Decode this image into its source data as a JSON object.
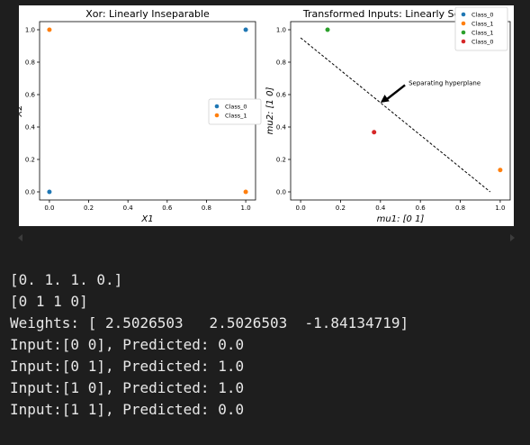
{
  "colors": {
    "background": "#1e1e1e",
    "output_text": "#e8e8e8",
    "class_0": "#1f77b4",
    "class_1": "#ff7f0e",
    "class_1_alt": "#2ca02c",
    "class_0_alt": "#d62728"
  },
  "chart_data": [
    {
      "type": "scatter",
      "title": "Xor: Linearly Inseparable",
      "xlabel": "X1",
      "ylabel": "X2",
      "xlim": [
        -0.05,
        1.05
      ],
      "ylim": [
        -0.05,
        1.05
      ],
      "xticks": [
        "0.0",
        "0.2",
        "0.4",
        "0.6",
        "0.8",
        "1.0"
      ],
      "yticks": [
        "0.0",
        "0.2",
        "0.4",
        "0.6",
        "0.8",
        "1.0"
      ],
      "legend_position": "center-right",
      "series": [
        {
          "name": "Class_0",
          "color": "#1f77b4",
          "points": [
            [
              0,
              0
            ],
            [
              1,
              1
            ]
          ]
        },
        {
          "name": "Class_1",
          "color": "#ff7f0e",
          "points": [
            [
              0,
              1
            ],
            [
              1,
              0
            ]
          ]
        }
      ]
    },
    {
      "type": "scatter",
      "title": "Transformed Inputs: Linearly Separable",
      "xlabel": "mu1: [0 1]",
      "ylabel": "mu2: [1 0]",
      "xlim": [
        -0.05,
        1.05
      ],
      "ylim": [
        -0.05,
        1.05
      ],
      "xticks": [
        "0.0",
        "0.2",
        "0.4",
        "0.6",
        "0.8",
        "1.0"
      ],
      "yticks": [
        "0.0",
        "0.2",
        "0.4",
        "0.6",
        "0.8",
        "1.0"
      ],
      "legend_position": "top-right",
      "series": [
        {
          "name": "Class_0",
          "color": "#1f77b4",
          "points": []
        },
        {
          "name": "Class_1",
          "color": "#ff7f0e",
          "points": [
            [
              1.0,
              0.135
            ]
          ]
        },
        {
          "name": "Class_1",
          "color": "#2ca02c",
          "points": [
            [
              0.135,
              1.0
            ]
          ]
        },
        {
          "name": "Class_0",
          "color": "#d62728",
          "points": [
            [
              0.368,
              0.368
            ]
          ]
        }
      ],
      "line": {
        "style": "dashed",
        "color": "#000000",
        "points": [
          [
            0.0,
            0.95
          ],
          [
            0.95,
            0.0
          ]
        ]
      },
      "annotation": {
        "text": "Separating hyperplane",
        "xy": [
          0.4,
          0.55
        ],
        "xytext": [
          0.55,
          0.67
        ]
      }
    }
  ],
  "output_lines": [
    "[0. 1. 1. 0.]",
    "[0 1 1 0]",
    "Weights: [ 2.5026503   2.5026503  -1.84134719]",
    "Input:[0 0], Predicted: 0.0",
    "Input:[0 1], Predicted: 1.0",
    "Input:[1 0], Predicted: 1.0",
    "Input:[1 1], Predicted: 0.0"
  ]
}
